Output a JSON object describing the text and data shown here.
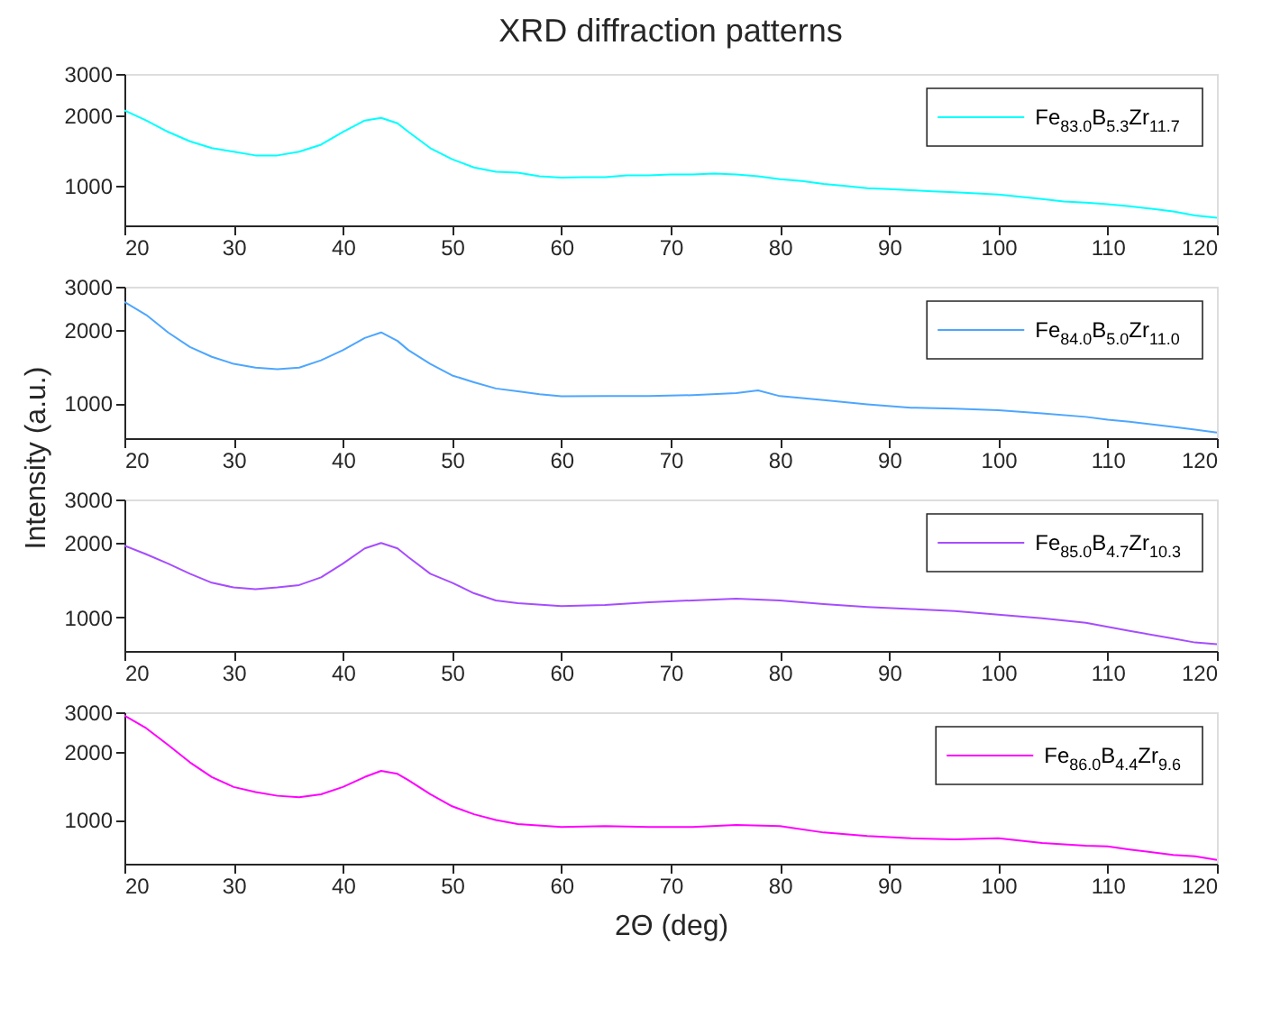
{
  "chart_data": [
    {
      "type": "line",
      "title": "XRD diffraction patterns",
      "log": "y",
      "grid": false,
      "legend": "top right",
      "line_style": "solid",
      "marker": "none",
      "xlim": [
        20,
        120
      ],
      "xticks": [
        20,
        30,
        40,
        50,
        60,
        70,
        80,
        90,
        100,
        110,
        120
      ],
      "ylim": [
        680,
        3000
      ],
      "yticks": [
        1000,
        2000,
        3000
      ],
      "x": [
        20,
        22,
        24,
        26,
        28,
        30,
        32,
        34,
        36,
        38,
        40,
        42,
        43.5,
        45,
        46,
        48,
        50,
        52,
        54,
        56,
        58,
        60,
        62,
        64,
        66,
        68,
        70,
        72,
        74,
        76,
        78,
        80,
        82,
        84,
        86,
        88,
        90,
        92,
        94,
        96,
        98,
        100,
        102,
        104,
        106,
        108,
        110,
        112,
        114,
        116,
        118,
        120
      ],
      "series": [
        {
          "name": "Fe$_{83.0}$B$_{5.3}$Zr$_{11.7}$",
          "color": "#00ffff",
          "values": [
            2100,
            1900,
            1700,
            1550,
            1450,
            1400,
            1350,
            1350,
            1400,
            1500,
            1700,
            1900,
            1950,
            1850,
            1700,
            1450,
            1300,
            1200,
            1150,
            1140,
            1100,
            1085,
            1090,
            1090,
            1110,
            1110,
            1120,
            1120,
            1130,
            1120,
            1100,
            1070,
            1050,
            1020,
            1000,
            980,
            970,
            960,
            950,
            940,
            930,
            920,
            900,
            880,
            860,
            850,
            836,
            820,
            800,
            780,
            750,
            733
          ]
        }
      ]
    },
    {
      "type": "line",
      "ylabel": "Intensity (a.u.)",
      "log": "y",
      "grid": false,
      "legend": "top right",
      "line_style": "solid",
      "marker": "none",
      "xlim": [
        20,
        120
      ],
      "xticks": [
        20,
        30,
        40,
        50,
        60,
        70,
        80,
        90,
        100,
        110,
        120
      ],
      "ylim": [
        720,
        3000
      ],
      "yticks": [
        1000,
        2000,
        3000
      ],
      "x": [
        20,
        22,
        24,
        26,
        28,
        30,
        32,
        34,
        36,
        38,
        40,
        42,
        43.5,
        45,
        46,
        48,
        50,
        52,
        54,
        56,
        58,
        60,
        64,
        68,
        72,
        76,
        78,
        80,
        84,
        88,
        92,
        96,
        100,
        104,
        108,
        110,
        112,
        116,
        118,
        120
      ],
      "series": [
        {
          "name": "Fe$_{84.0}$B$_{5.0}$Zr$_{11.0}$",
          "color": "#4da6ff",
          "values": [
            2600,
            2300,
            1950,
            1700,
            1550,
            1450,
            1400,
            1380,
            1400,
            1500,
            1650,
            1850,
            1950,
            1800,
            1650,
            1450,
            1300,
            1220,
            1150,
            1120,
            1090,
            1068,
            1070,
            1070,
            1080,
            1100,
            1130,
            1070,
            1030,
            990,
            960,
            950,
            937,
            910,
            880,
            857,
            840,
            800,
            780,
            760
          ]
        }
      ]
    },
    {
      "type": "line",
      "log": "y",
      "grid": false,
      "legend": "top right",
      "line_style": "solid",
      "marker": "none",
      "xlim": [
        20,
        120
      ],
      "xticks": [
        20,
        30,
        40,
        50,
        60,
        70,
        80,
        90,
        100,
        110,
        120
      ],
      "ylim": [
        730,
        3000
      ],
      "yticks": [
        1000,
        2000,
        3000
      ],
      "x": [
        20,
        22,
        24,
        26,
        28,
        30,
        32,
        34,
        36,
        38,
        40,
        42,
        43.5,
        45,
        46,
        48,
        50,
        52,
        54,
        56,
        60,
        64,
        68,
        72,
        76,
        80,
        84,
        88,
        92,
        96,
        100,
        104,
        108,
        110,
        112,
        116,
        118,
        120
      ],
      "series": [
        {
          "name": "Fe$_{85.0}$B$_{4.7}$Zr$_{10.3}$",
          "color": "#a64dff",
          "values": [
            1950,
            1800,
            1650,
            1500,
            1380,
            1320,
            1300,
            1320,
            1350,
            1450,
            1650,
            1900,
            2000,
            1900,
            1750,
            1500,
            1380,
            1250,
            1170,
            1140,
            1110,
            1120,
            1150,
            1170,
            1190,
            1170,
            1130,
            1100,
            1080,
            1060,
            1025,
            990,
            950,
            915,
            880,
            820,
            790,
            777
          ]
        }
      ]
    },
    {
      "type": "line",
      "xlabel": "2Θ (deg)",
      "log": "y",
      "grid": false,
      "legend": "top right",
      "line_style": "solid",
      "marker": "none",
      "xlim": [
        20,
        120
      ],
      "xticks": [
        20,
        30,
        40,
        50,
        60,
        70,
        80,
        90,
        100,
        110,
        120
      ],
      "ylim": [
        640,
        3000
      ],
      "yticks": [
        1000,
        2000,
        3000
      ],
      "x": [
        20,
        22,
        24,
        26,
        28,
        30,
        32,
        34,
        36,
        38,
        40,
        42,
        43.5,
        45,
        46,
        48,
        50,
        52,
        54,
        56,
        60,
        64,
        68,
        72,
        76,
        80,
        84,
        88,
        92,
        96,
        100,
        104,
        108,
        110,
        112,
        116,
        118,
        120
      ],
      "series": [
        {
          "name": "Fe$_{86.0}$B$_{4.4}$Zr$_{9.6}$",
          "color": "#ff00ff",
          "values": [
            2900,
            2550,
            2150,
            1800,
            1550,
            1400,
            1330,
            1280,
            1260,
            1300,
            1400,
            1550,
            1650,
            1600,
            1500,
            1300,
            1150,
            1060,
            1000,
            960,
            930,
            940,
            930,
            930,
            950,
            940,
            880,
            850,
            830,
            820,
            830,
            790,
            770,
            764,
            740,
            700,
            690,
            665
          ]
        }
      ]
    }
  ]
}
